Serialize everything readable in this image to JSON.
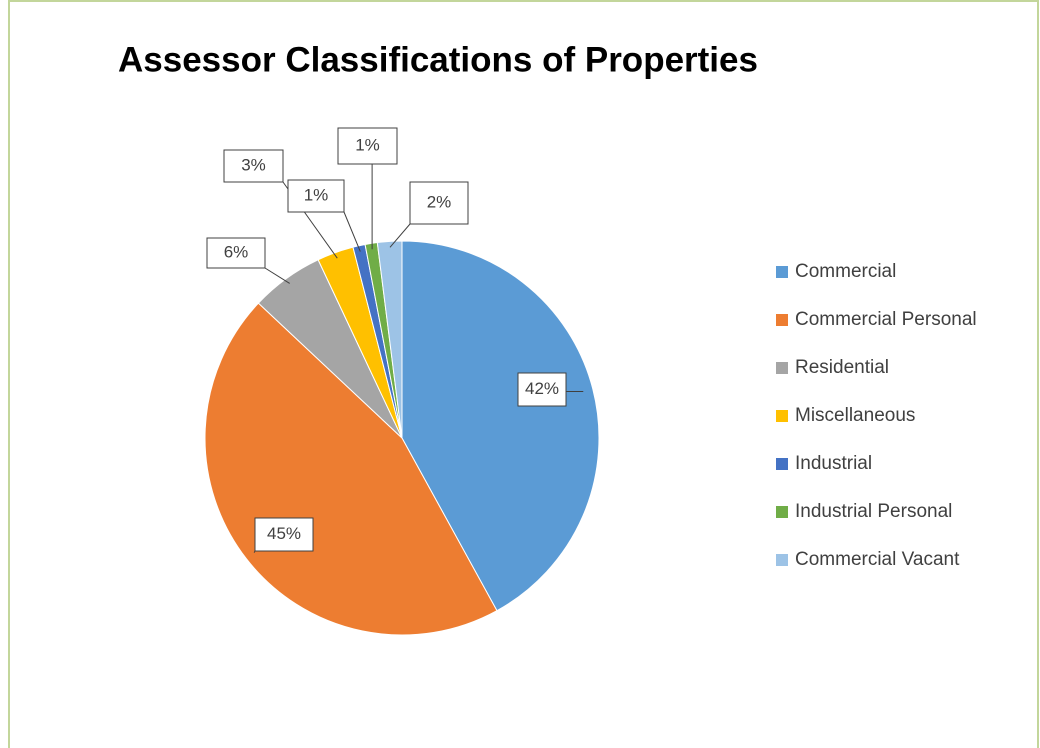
{
  "chart_data": {
    "type": "pie",
    "title": "Assessor Classifications of Properties",
    "categories": [
      "Commercial",
      "Commercial Personal",
      "Residential",
      "Miscellaneous",
      "Industrial",
      "Industrial Personal",
      "Commercial Vacant"
    ],
    "values": [
      42,
      45,
      6,
      3,
      1,
      1,
      2
    ],
    "value_labels": [
      "42%",
      "45%",
      "6%",
      "3%",
      "1%",
      "1%",
      "2%"
    ],
    "colors": [
      "#5B9BD5",
      "#ED7D31",
      "#A5A5A5",
      "#FFC000",
      "#4472C4",
      "#70AD47",
      "#9DC3E6"
    ],
    "legend": "right"
  }
}
